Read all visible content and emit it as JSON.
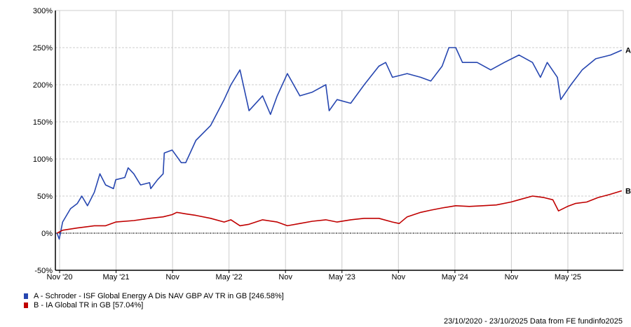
{
  "chart_data": {
    "type": "line",
    "title": "",
    "xlabel": "",
    "ylabel": "",
    "ylim": [
      -50,
      300
    ],
    "xlim": [
      2020.81,
      2025.81
    ],
    "y_ticks": [
      -50,
      0,
      50,
      100,
      150,
      200,
      250,
      300
    ],
    "y_tick_labels": [
      "-50%",
      "0%",
      "50%",
      "100%",
      "150%",
      "200%",
      "250%",
      "300%"
    ],
    "x_ticks": [
      2020.833,
      2021.333,
      2021.833,
      2022.333,
      2022.833,
      2023.333,
      2023.833,
      2024.333,
      2024.833,
      2025.333
    ],
    "x_tick_labels": [
      "Nov '20",
      "May '21",
      "Nov",
      "May '22",
      "Nov",
      "May '23",
      "Nov",
      "May '24",
      "Nov",
      "May '25"
    ],
    "grid": true,
    "series": [
      {
        "name": "A - Schroder - ISF Global Energy A Dis NAV GBP AV TR in GB [246.58%]",
        "end_label": "A",
        "color": "#2646b0",
        "x": [
          2020.81,
          2020.83,
          2020.86,
          2020.93,
          2020.99,
          2021.03,
          2021.08,
          2021.14,
          2021.19,
          2021.24,
          2021.31,
          2021.33,
          2021.41,
          2021.44,
          2021.49,
          2021.55,
          2021.63,
          2021.64,
          2021.7,
          2021.75,
          2021.76,
          2021.83,
          2021.91,
          2021.95,
          2022.04,
          2022.17,
          2022.29,
          2022.35,
          2022.43,
          2022.51,
          2022.63,
          2022.7,
          2022.76,
          2022.85,
          2022.96,
          2023.07,
          2023.19,
          2023.22,
          2023.29,
          2023.41,
          2023.53,
          2023.66,
          2023.72,
          2023.78,
          2023.91,
          2024.03,
          2024.12,
          2024.22,
          2024.28,
          2024.34,
          2024.4,
          2024.53,
          2024.65,
          2024.77,
          2024.9,
          2025.02,
          2025.09,
          2025.15,
          2025.24,
          2025.27,
          2025.36,
          2025.46,
          2025.58,
          2025.71,
          2025.81
        ],
        "y": [
          0,
          -8,
          15,
          33,
          40,
          50,
          37,
          55,
          80,
          65,
          60,
          72,
          75,
          88,
          80,
          65,
          68,
          60,
          72,
          80,
          108,
          112,
          95,
          95,
          125,
          145,
          180,
          200,
          220,
          165,
          185,
          160,
          185,
          215,
          185,
          190,
          200,
          165,
          180,
          175,
          200,
          225,
          230,
          210,
          215,
          210,
          205,
          225,
          250,
          250,
          230,
          230,
          220,
          230,
          240,
          230,
          210,
          230,
          210,
          180,
          200,
          220,
          235,
          240,
          246.58
        ]
      },
      {
        "name": "B - IA Global TR in GB [57.04%]",
        "end_label": "B",
        "color": "#c00000",
        "x": [
          2020.81,
          2020.86,
          2020.99,
          2021.14,
          2021.24,
          2021.33,
          2021.49,
          2021.63,
          2021.75,
          2021.83,
          2021.87,
          2021.95,
          2022.04,
          2022.17,
          2022.29,
          2022.35,
          2022.43,
          2022.51,
          2022.63,
          2022.76,
          2022.85,
          2022.96,
          2023.07,
          2023.19,
          2023.29,
          2023.41,
          2023.53,
          2023.66,
          2023.78,
          2023.84,
          2023.91,
          2024.03,
          2024.12,
          2024.22,
          2024.34,
          2024.46,
          2024.58,
          2024.7,
          2024.83,
          2024.9,
          2025.02,
          2025.12,
          2025.2,
          2025.25,
          2025.33,
          2025.4,
          2025.5,
          2025.6,
          2025.7,
          2025.81
        ],
        "y": [
          0,
          4,
          7,
          10,
          10,
          15,
          17,
          20,
          22,
          25,
          28,
          26,
          24,
          20,
          15,
          18,
          10,
          12,
          18,
          15,
          10,
          13,
          16,
          18,
          15,
          18,
          20,
          20,
          15,
          13,
          22,
          28,
          31,
          34,
          37,
          36,
          37,
          38,
          42,
          45,
          50,
          48,
          45,
          30,
          36,
          40,
          42,
          48,
          52,
          57.04
        ]
      }
    ],
    "legend_position": "bottom-left"
  },
  "footer": "23/10/2020 - 23/10/2025 Data from FE fundinfo2025"
}
